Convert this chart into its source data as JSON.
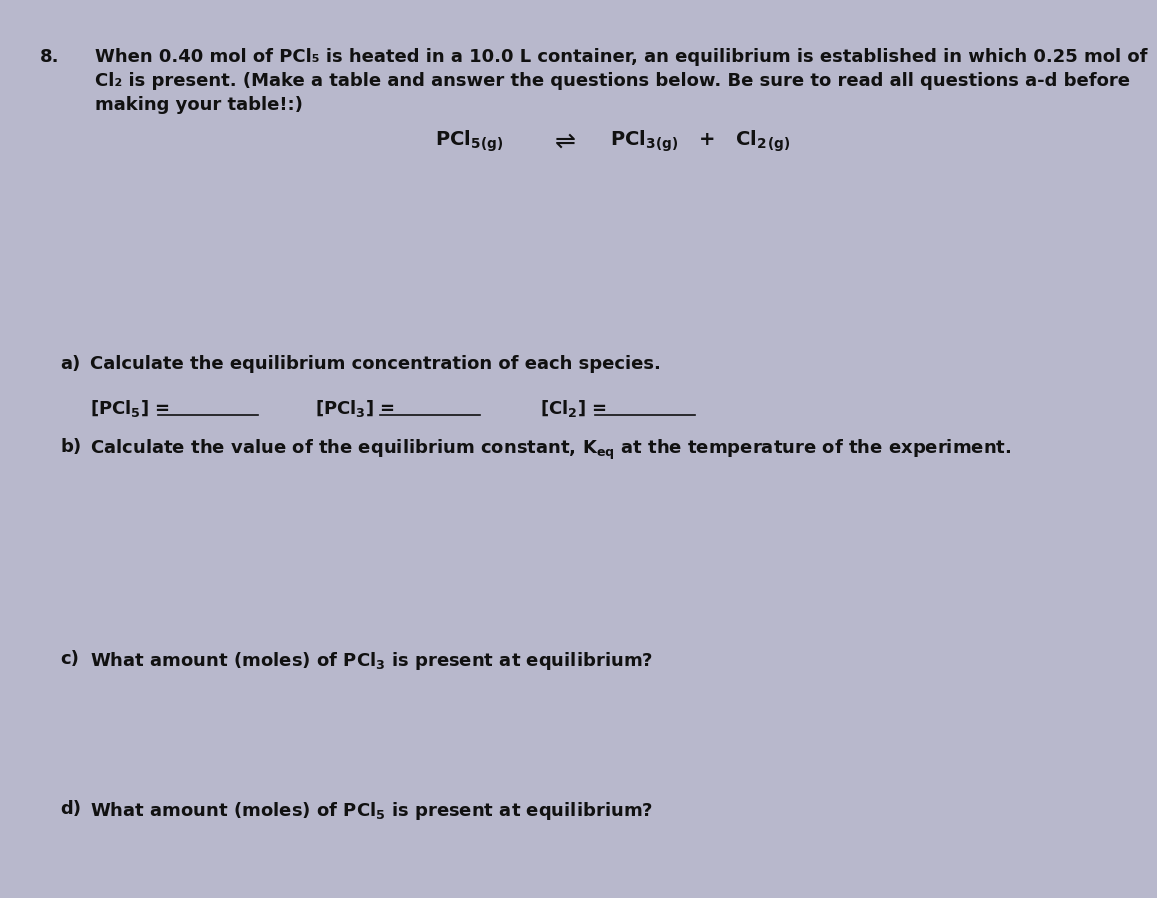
{
  "background_color": "#b8b8cc",
  "text_color": "#111111",
  "q_number": "8.",
  "line1": "When 0.40 mol of PCl₅ is heated in a 10.0 L container, an equilibrium is established in which 0.25 mol of",
  "line2": "Cl₂ is present. (Make a table and answer the questions below. Be sure to read all questions a-d before",
  "line3": "making your table!:)",
  "part_a_label": "a)",
  "part_a_text": "Calculate the equilibrium concentration of each species.",
  "part_b_label": "b)",
  "part_b_text": "Calculate the value of the equilibrium constant, K",
  "part_b_sub": "eq",
  "part_b_end": " at the temperature of the experiment.",
  "part_c_label": "c)",
  "part_c_text": "What amount (moles) of PCl₃ is present at equilibrium?",
  "part_d_label": "d)",
  "part_d_text": "What amount (moles) of PCl₅ is present at equilibrium?",
  "font_size": 13,
  "eq_font_size": 14
}
